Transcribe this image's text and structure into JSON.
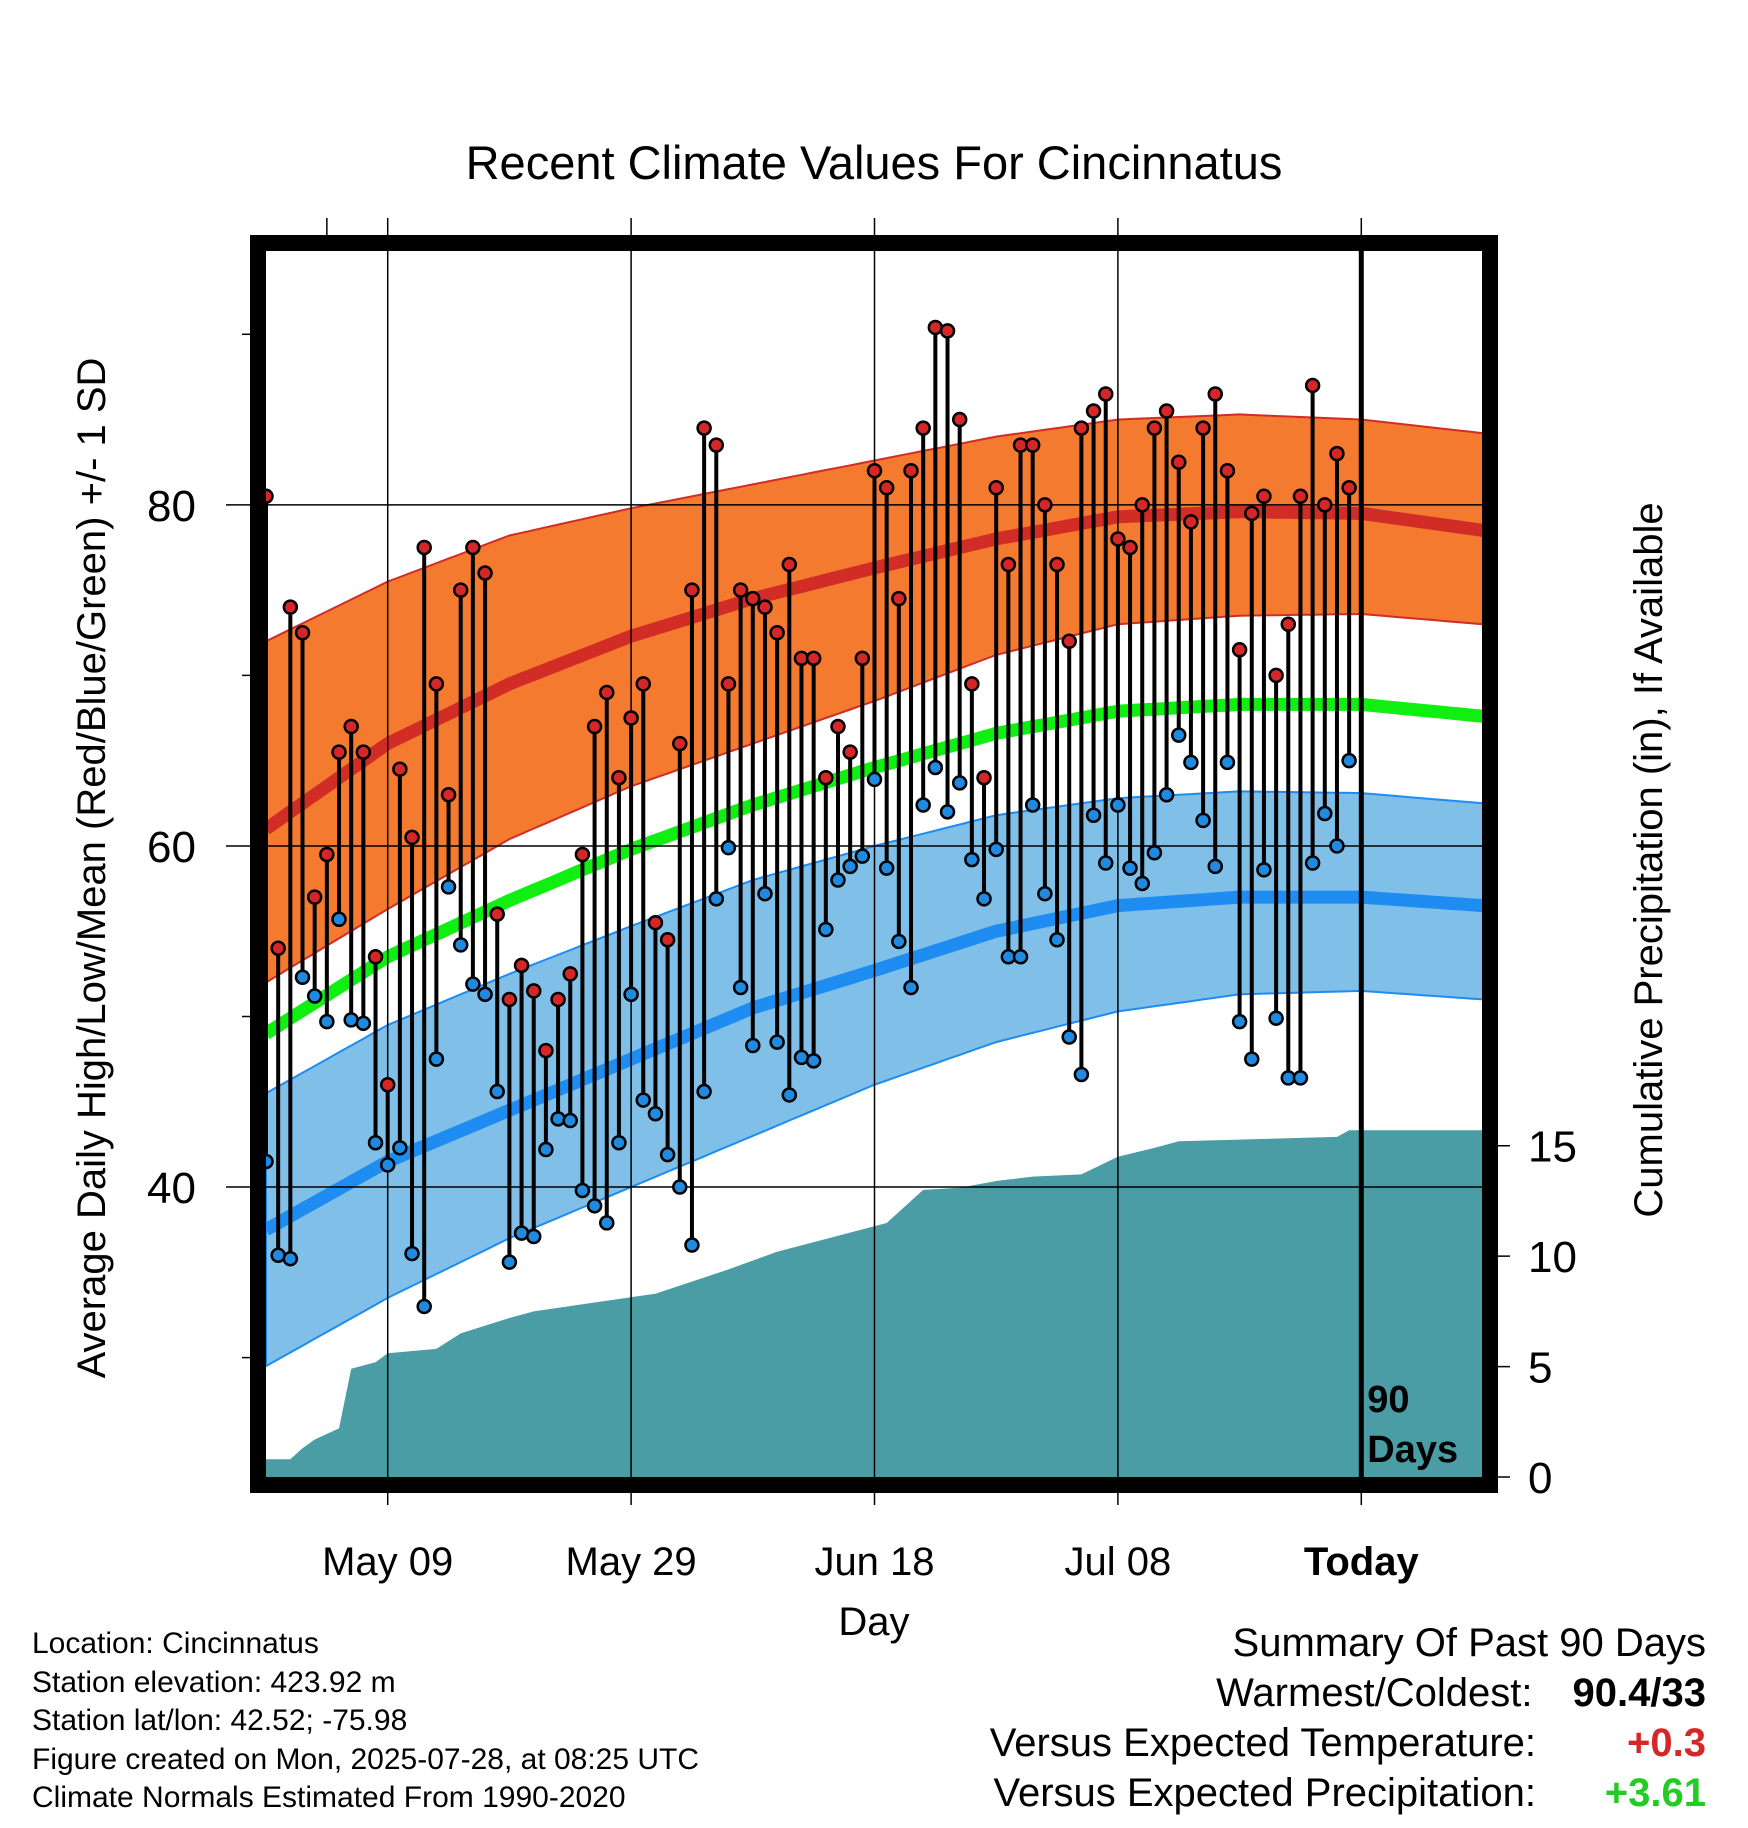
{
  "chart_data": {
    "type": "line",
    "title": "Recent Climate Values For Cincinnatus",
    "xlabel": "Day",
    "ylabel": "Average Daily High/Low/Mean (Red/Blue/Green) +/- 1 SD",
    "y2label": "Cumulative Precipitation (in), If Available",
    "xticks": [
      {
        "day": 10,
        "label": "May 09"
      },
      {
        "day": 30,
        "label": "May 29"
      },
      {
        "day": 50,
        "label": "Jun 18"
      },
      {
        "day": 70,
        "label": "Jul 08"
      },
      {
        "day": 90,
        "label": "Today"
      }
    ],
    "xlim": [
      0,
      100
    ],
    "ylim": [
      23,
      95
    ],
    "yticks": [
      40,
      60,
      80
    ],
    "y2lim": [
      0,
      55.6
    ],
    "y2ticks": [
      0,
      5,
      10,
      15
    ],
    "today_marker": {
      "day": 90,
      "label_line1": "90",
      "label_line2": "Days"
    },
    "normals": {
      "days": [
        0,
        10,
        20,
        30,
        40,
        50,
        60,
        70,
        80,
        90,
        100
      ],
      "high_mean": [
        61,
        66,
        69.5,
        72.3,
        74.5,
        76.3,
        78,
        79.3,
        79.6,
        79.5,
        78.5
      ],
      "high_upper": [
        72,
        75.5,
        78.2,
        79.8,
        81.2,
        82.6,
        84,
        85,
        85.3,
        85,
        84.2
      ],
      "high_lower": [
        52,
        56.3,
        60.4,
        63.5,
        66,
        68.5,
        71.2,
        73,
        73.5,
        73.6,
        73
      ],
      "avg_mean": [
        49,
        53.5,
        56.8,
        59.8,
        62.4,
        64.6,
        66.6,
        67.9,
        68.3,
        68.3,
        67.6
      ],
      "low_mean": [
        37.5,
        41.5,
        44.5,
        47.5,
        50.5,
        52.7,
        55,
        56.5,
        57,
        57,
        56.5
      ],
      "low_upper": [
        45.5,
        49.5,
        52.5,
        55.3,
        58,
        60,
        61.8,
        62.8,
        63.2,
        63.1,
        62.5
      ],
      "low_lower": [
        29.5,
        33.5,
        37,
        40,
        43,
        46,
        48.5,
        50.3,
        51.3,
        51.5,
        51
      ]
    },
    "series": [
      {
        "name": "High",
        "values": [
          80.5,
          54,
          74,
          72.5,
          57,
          59.5,
          65.5,
          67,
          65.5,
          53.5,
          46,
          64.5,
          60.5,
          77.5,
          69.5,
          63,
          75,
          77.5,
          76,
          56,
          51,
          53,
          51.5,
          48,
          51,
          52.5,
          59.5,
          67,
          69,
          64,
          67.5,
          69.5,
          55.5,
          54.5,
          66,
          75,
          84.5,
          83.5,
          69.5,
          75,
          74.5,
          74,
          72.5,
          76.5,
          71,
          71,
          64,
          67,
          65.5,
          71,
          82,
          81,
          74.5,
          82,
          84.5,
          90.4,
          90.2,
          85,
          69.5,
          64,
          81,
          76.5,
          83.5,
          83.5,
          80,
          76.5,
          72,
          84.5,
          85.5,
          86.5,
          78,
          77.5,
          80,
          84.5,
          85.5,
          82.5,
          79,
          84.5,
          86.5,
          82,
          71.5,
          79.5,
          80.5,
          70,
          73,
          80.5,
          87,
          80,
          83,
          81
        ]
      },
      {
        "name": "Low",
        "values": [
          41.5,
          36,
          35.8,
          52.3,
          51.2,
          49.7,
          55.7,
          49.8,
          49.6,
          42.6,
          41.3,
          42.3,
          36.1,
          33,
          47.5,
          57.6,
          54.2,
          51.9,
          51.3,
          45.6,
          35.6,
          37.3,
          37.1,
          42.2,
          44,
          43.9,
          39.8,
          38.9,
          37.9,
          42.6,
          51.3,
          45.1,
          44.3,
          41.9,
          40,
          36.6,
          45.6,
          56.9,
          59.9,
          51.7,
          48.3,
          57.2,
          48.5,
          45.4,
          47.6,
          47.4,
          55.1,
          58,
          58.8,
          59.4,
          63.9,
          58.7,
          54.4,
          51.7,
          62.4,
          64.6,
          62,
          63.7,
          59.2,
          56.9,
          59.8,
          53.5,
          53.5,
          62.4,
          57.2,
          54.5,
          48.8,
          46.6,
          61.8,
          59,
          62.4,
          58.7,
          57.8,
          59.6,
          63,
          66.5,
          64.9,
          61.5,
          58.8,
          64.9,
          49.7,
          47.5,
          58.6,
          49.9,
          46.4,
          46.4,
          59,
          61.9,
          60,
          65
        ]
      }
    ],
    "precip_cumulative": [
      [
        0,
        0.8
      ],
      [
        2,
        0.8
      ],
      [
        3,
        1.3
      ],
      [
        4,
        1.7
      ],
      [
        6,
        2.2
      ],
      [
        7,
        4.9
      ],
      [
        9,
        5.2
      ],
      [
        10,
        5.6
      ],
      [
        14,
        5.8
      ],
      [
        16,
        6.5
      ],
      [
        20,
        7.2
      ],
      [
        22,
        7.5
      ],
      [
        27,
        7.9
      ],
      [
        32,
        8.3
      ],
      [
        38,
        9.4
      ],
      [
        42,
        10.2
      ],
      [
        51,
        11.5
      ],
      [
        54,
        13
      ],
      [
        57,
        13.1
      ],
      [
        60,
        13.4
      ],
      [
        63,
        13.6
      ],
      [
        67,
        13.7
      ],
      [
        70,
        14.5
      ],
      [
        73,
        14.9
      ],
      [
        75,
        15.2
      ],
      [
        88,
        15.4
      ],
      [
        89,
        15.7
      ],
      [
        91.5,
        15.7
      ],
      [
        100,
        15.7
      ]
    ]
  },
  "info": {
    "location": "Location: Cincinnatus",
    "elevation": "Station elevation: 423.92 m",
    "latlon": "Station lat/lon: 42.52; -75.98",
    "created": "Figure created on Mon, 2025-07-28, at 08:25 UTC",
    "normals_note": "Climate Normals Estimated From 1990-2020"
  },
  "summary": {
    "heading": "Summary Of Past 90 Days",
    "warmest_label": "Warmest/Coldest:",
    "warmest_value": "90.4/33",
    "temp_label": "Versus Expected Temperature:",
    "temp_value": "+0.3",
    "precip_label": "Versus Expected Precipitation:",
    "precip_value": "+3.61"
  },
  "colors": {
    "high_band": "#f47a30",
    "high_line": "#d22c27",
    "avg_line": "#11ee11",
    "low_band": "#7fbfe8",
    "low_line": "#1e8cf0",
    "precip": "#4a9ca5",
    "high_dot": "#d62728",
    "low_dot": "#1f8ae0"
  }
}
